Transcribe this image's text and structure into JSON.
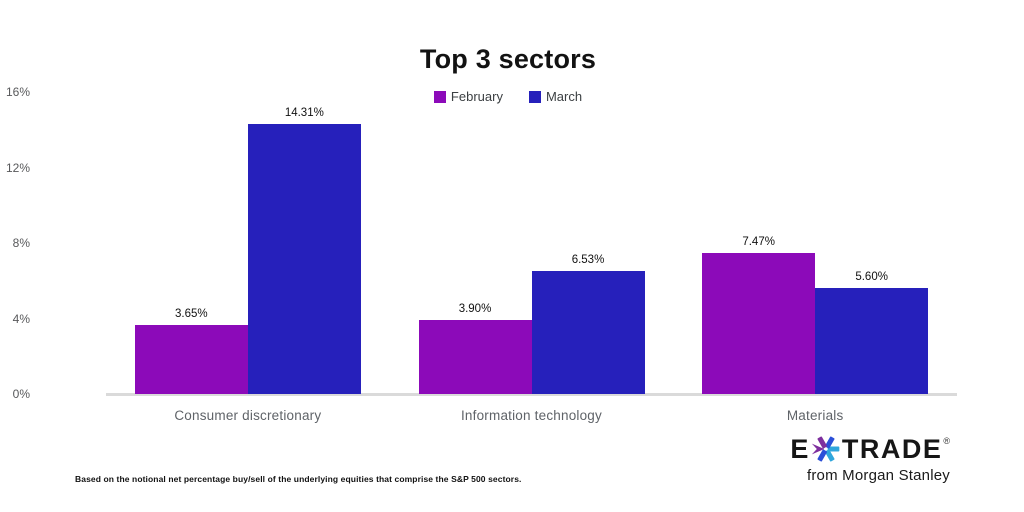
{
  "title": "Top 3 sectors",
  "chart_data": {
    "type": "bar",
    "title": "Top 3 sectors",
    "categories": [
      "Consumer discretionary",
      "Information technology",
      "Materials"
    ],
    "series": [
      {
        "name": "February",
        "color": "#8C0AB9",
        "values": [
          3.65,
          3.9,
          7.47
        ],
        "value_labels": [
          "3.65%",
          "3.90%",
          "7.47%"
        ]
      },
      {
        "name": "March",
        "color": "#2620BB",
        "values": [
          14.31,
          6.53,
          5.6
        ],
        "value_labels": [
          "14.31%",
          "6.53%",
          "5.60%"
        ]
      }
    ],
    "xlabel": "",
    "ylabel": "",
    "ylim": [
      0,
      16
    ],
    "yticks": [
      {
        "value": 0,
        "label": "0%"
      },
      {
        "value": 4,
        "label": "4%"
      },
      {
        "value": 8,
        "label": "8%"
      },
      {
        "value": 12,
        "label": "12%"
      },
      {
        "value": 16,
        "label": "16%"
      }
    ],
    "grid": false,
    "legend_position": "top-center"
  },
  "footnote": "Based on the notional net percentage buy/sell of the underlying equities that comprise the S&P 500 sectors.",
  "logo": {
    "brand_prefix": "E",
    "brand_suffix": "TRADE",
    "registered_mark": "®",
    "tagline": "from Morgan Stanley",
    "asterisk_icon": "etrade-asterisk",
    "asterisk_colors": {
      "purple": "#7E2F9E",
      "blue": "#2B4FD8",
      "cyan": "#2FA6DC"
    }
  },
  "colors": {
    "february": "#8C0AB9",
    "march": "#2620BB",
    "axis_line": "#DADADA",
    "tick_text": "#58595B",
    "category_text": "#5F6368",
    "value_text": "#111111"
  }
}
